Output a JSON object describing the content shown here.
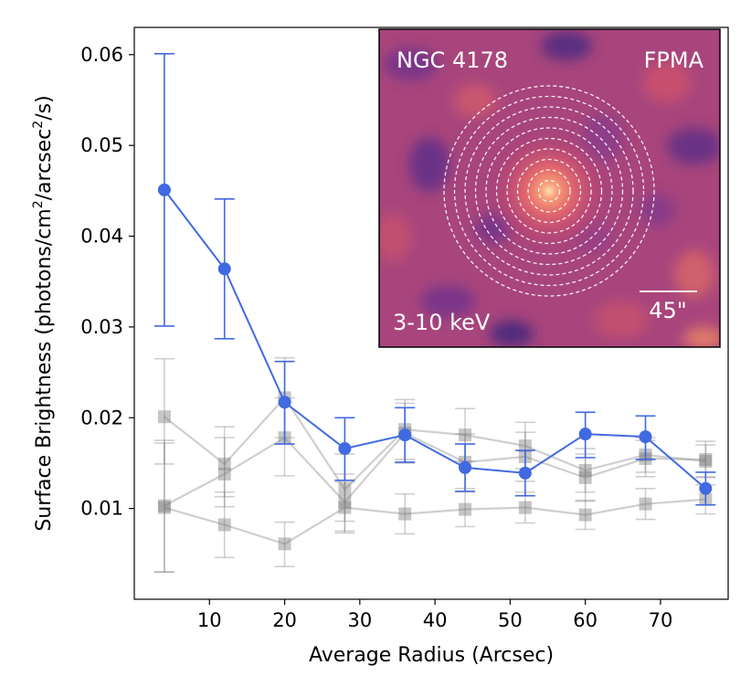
{
  "chart_data": {
    "type": "line",
    "xlabel": "Average Radius (Arcsec)",
    "ylabel_prefix": "Surface Brightness (photons/cm",
    "ylabel_mid": "/arcsec",
    "ylabel_suffix": "/s)",
    "ylabel_sup": "2",
    "xlim": [
      0,
      79
    ],
    "ylim": [
      0,
      0.063
    ],
    "xticks": [
      10,
      20,
      30,
      40,
      50,
      60,
      70
    ],
    "yticks": [
      0.01,
      0.02,
      0.03,
      0.04,
      0.05,
      0.06
    ],
    "ytick_labels": [
      "0.01",
      "0.02",
      "0.03",
      "0.04",
      "0.05",
      "0.06"
    ],
    "x": [
      4,
      12,
      20,
      28,
      36,
      44,
      52,
      60,
      68,
      76
    ],
    "series": [
      {
        "role": "source",
        "color": "#4169e1",
        "values": [
          0.0451,
          0.0364,
          0.0217,
          0.0166,
          0.0181,
          0.0145,
          0.0139,
          0.0182,
          0.0179,
          0.0122
        ],
        "err_low": [
          0.0301,
          0.0287,
          0.0171,
          0.0131,
          0.0151,
          0.0119,
          0.0114,
          0.0156,
          0.0154,
          0.0104
        ],
        "err_high": [
          0.0601,
          0.0441,
          0.0262,
          0.02,
          0.0211,
          0.0171,
          0.0164,
          0.0206,
          0.0202,
          0.014
        ]
      },
      {
        "role": "background-1",
        "color": "#808080",
        "values": [
          0.0201,
          0.0149,
          0.0222,
          0.0121,
          0.0187,
          0.0181,
          0.0169,
          0.0142,
          0.0159,
          0.0152
        ],
        "err_low": [
          0.0149,
          0.0113,
          0.0178,
          0.0086,
          0.0154,
          0.0152,
          0.0144,
          0.0118,
          0.014,
          0.0135
        ],
        "err_high": [
          0.0265,
          0.019,
          0.0266,
          0.016,
          0.022,
          0.021,
          0.0195,
          0.0166,
          0.0178,
          0.017
        ]
      },
      {
        "role": "background-2",
        "color": "#808080",
        "values": [
          0.0103,
          0.0138,
          0.0178,
          0.0107,
          0.0183,
          0.0151,
          0.0157,
          0.0134,
          0.0155,
          0.0154
        ],
        "err_low": [
          0.003,
          0.0102,
          0.0136,
          0.0075,
          0.015,
          0.0122,
          0.013,
          0.0108,
          0.0135,
          0.0134
        ],
        "err_high": [
          0.0175,
          0.0178,
          0.0222,
          0.0138,
          0.0216,
          0.0182,
          0.0184,
          0.016,
          0.0175,
          0.0174
        ]
      },
      {
        "role": "background-3",
        "color": "#808080",
        "values": [
          0.0101,
          0.0082,
          0.0061,
          0.0101,
          0.0094,
          0.0099,
          0.0101,
          0.0093,
          0.0105,
          0.011
        ],
        "err_low": [
          0.003,
          0.0046,
          0.0036,
          0.0073,
          0.0072,
          0.008,
          0.0084,
          0.0077,
          0.0088,
          0.0094
        ],
        "err_high": [
          0.0172,
          0.0118,
          0.0085,
          0.0129,
          0.0116,
          0.0118,
          0.0118,
          0.0109,
          0.0122,
          0.0126
        ]
      }
    ]
  },
  "inset": {
    "object_label": "NGC 4178",
    "instrument_label": "FPMA",
    "energy_label": "3-10 keV",
    "scale_label": "45\"",
    "annulus_count": 10,
    "colormap": [
      "#3d2a78",
      "#8e3a8a",
      "#c24a72",
      "#e07a68",
      "#fbc8a0"
    ]
  }
}
